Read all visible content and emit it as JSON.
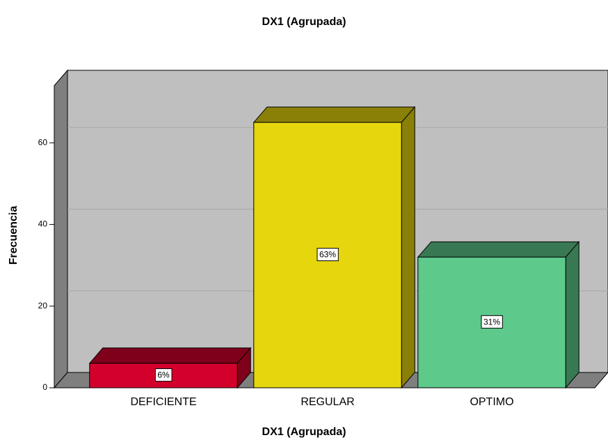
{
  "chart_data": {
    "type": "bar3d",
    "title": "DX1 (Agrupada)",
    "x_label": "DX1 (Agrupada)",
    "y_label": "Frecuencia",
    "categories": [
      "DEFICIENTE",
      "REGULAR",
      "OPTIMO"
    ],
    "values": [
      6,
      65,
      32
    ],
    "percent_labels": [
      "6%",
      "63%",
      "31%"
    ],
    "colors": [
      "#d4002c",
      "#e6d60e",
      "#5dc98a"
    ],
    "ylim": [
      0,
      74
    ],
    "yticks": [
      0,
      20,
      40,
      60
    ],
    "grid": true
  }
}
